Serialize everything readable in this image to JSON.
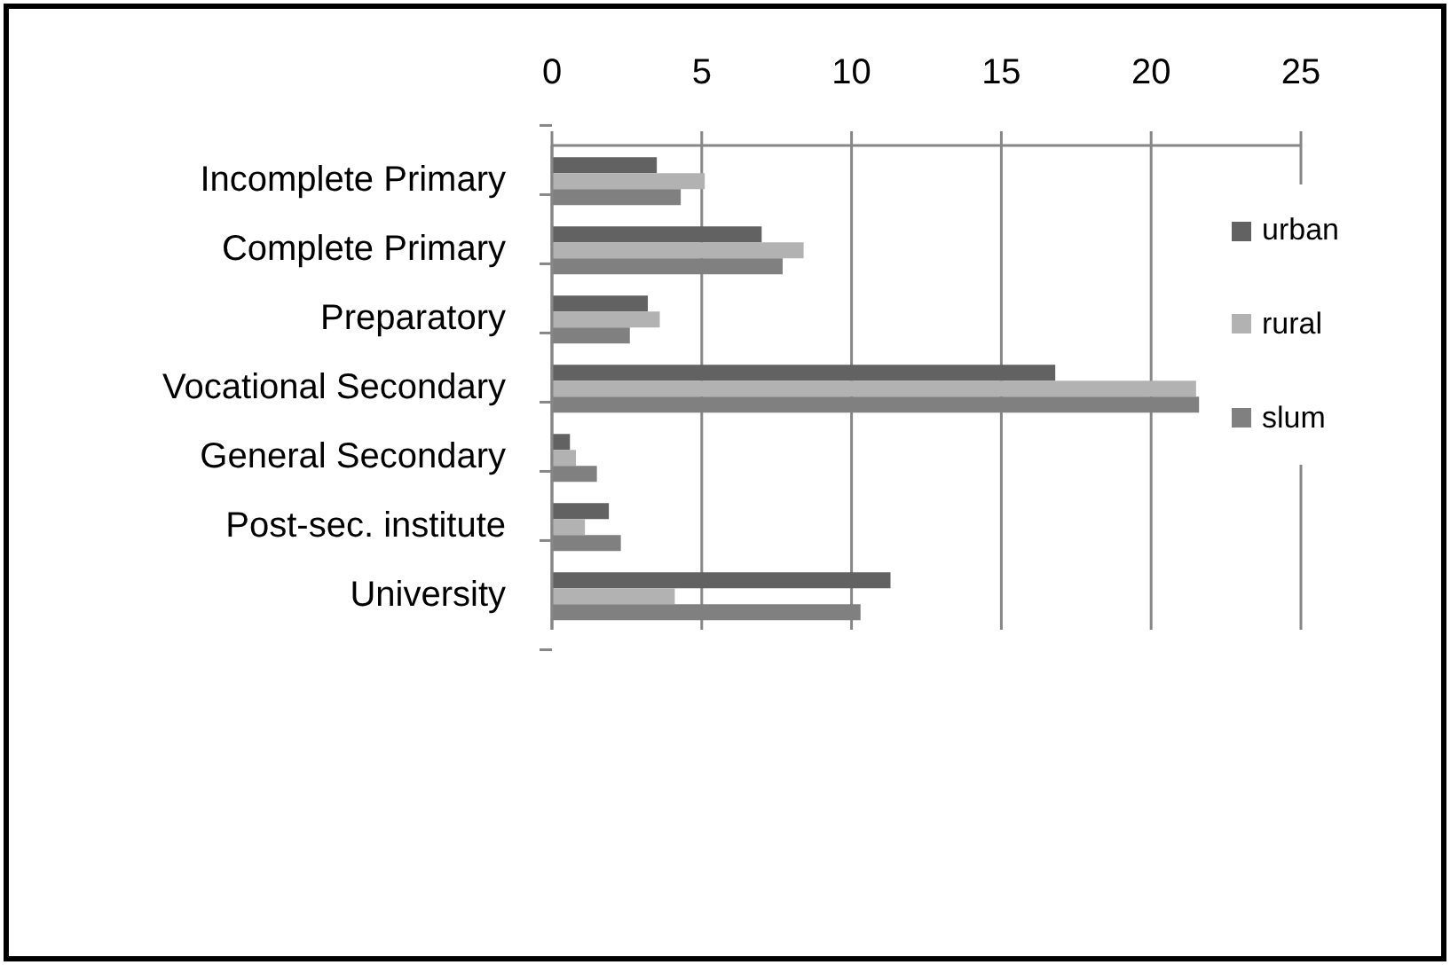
{
  "chart_data": {
    "type": "bar",
    "orientation": "horizontal",
    "categories": [
      "Incomplete Primary",
      "Complete Primary",
      "Preparatory",
      "Vocational Secondary",
      "General Secondary",
      "Post-sec. institute",
      "University"
    ],
    "series": [
      {
        "name": "urban",
        "color": "#626262",
        "values": [
          3.5,
          7.0,
          3.2,
          16.8,
          0.6,
          1.9,
          11.3
        ]
      },
      {
        "name": "rural",
        "color": "#b2b2b2",
        "values": [
          5.1,
          8.4,
          3.6,
          21.5,
          0.8,
          1.1,
          4.1
        ]
      },
      {
        "name": "slum",
        "color": "#808080",
        "values": [
          4.3,
          7.7,
          2.6,
          21.6,
          1.5,
          2.3,
          10.3
        ]
      }
    ],
    "xlim": [
      0,
      25
    ],
    "xticks": [
      0,
      5,
      10,
      15,
      20,
      25
    ],
    "grid": "x",
    "legend": "right"
  }
}
